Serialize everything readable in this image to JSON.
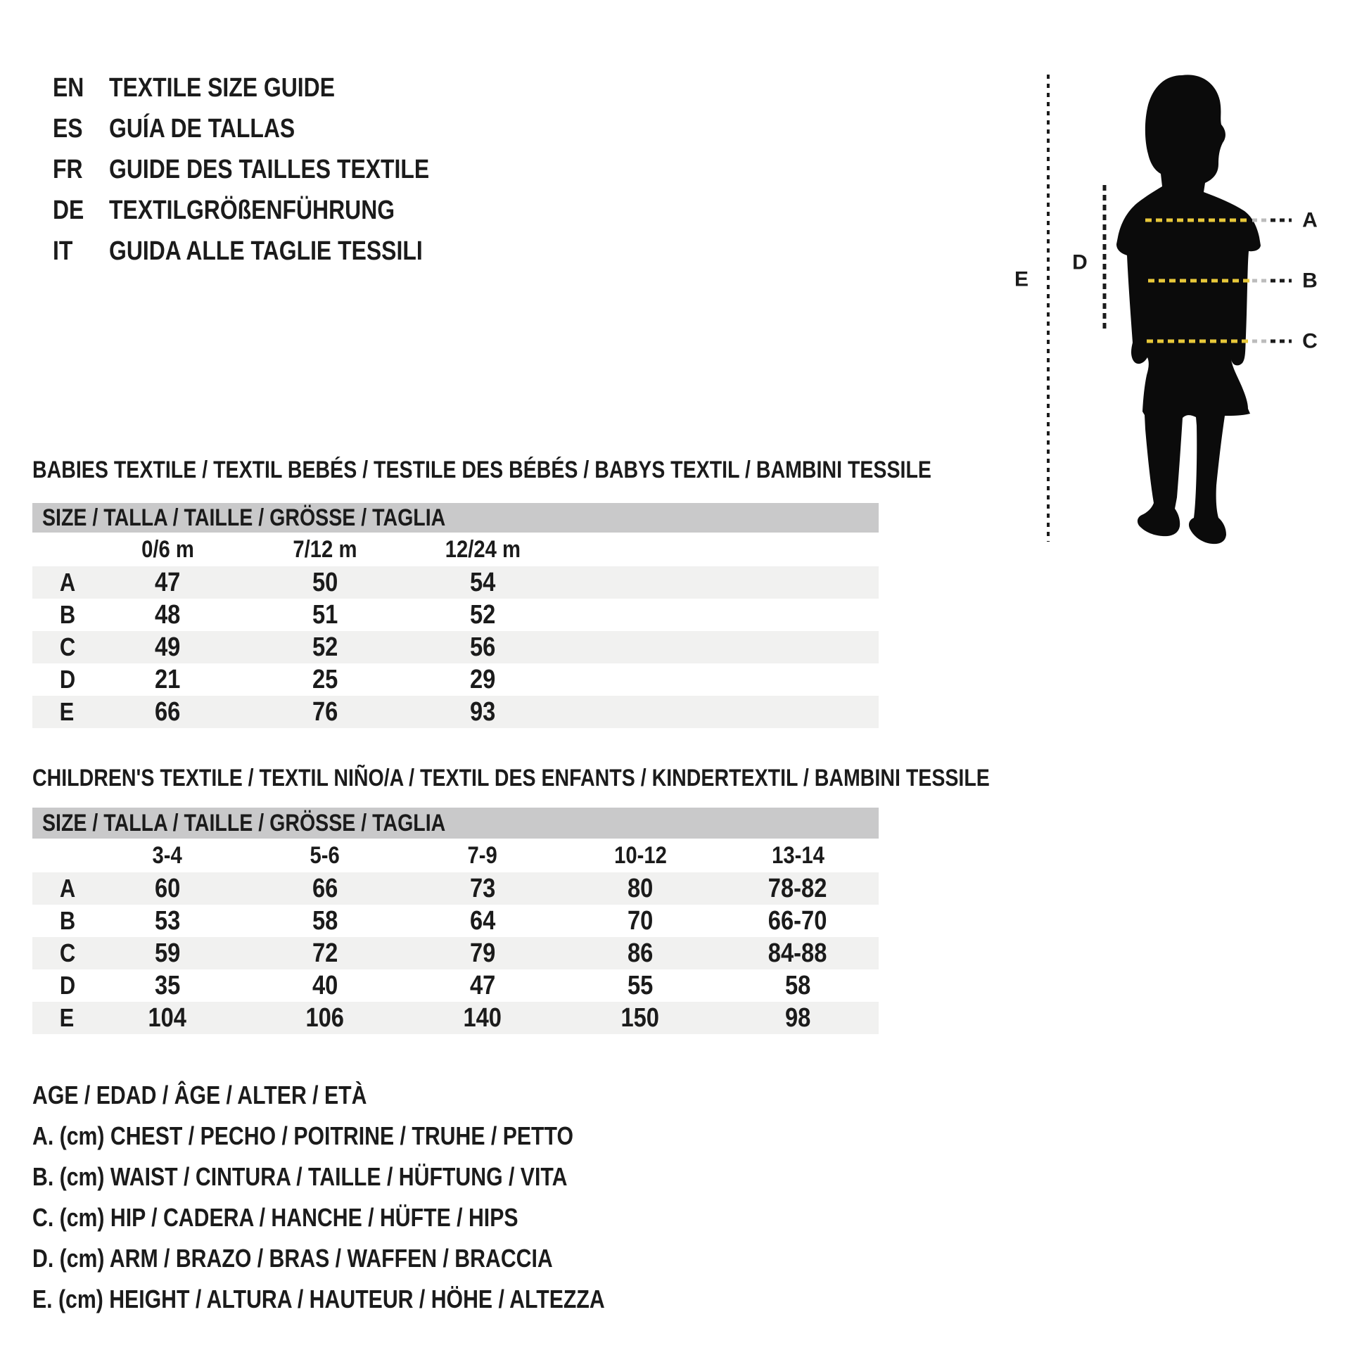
{
  "header": {
    "rows": [
      {
        "lang": "EN",
        "title": "TEXTILE SIZE GUIDE"
      },
      {
        "lang": "ES",
        "title": "GUÍA DE TALLAS"
      },
      {
        "lang": "FR",
        "title": "GUIDE DES TAILLES TEXTILE"
      },
      {
        "lang": "DE",
        "title": "TEXTILGRÖßENFÜHRUNG"
      },
      {
        "lang": "IT",
        "title": "GUIDA ALLE TAGLIE TESSILI"
      }
    ]
  },
  "figure": {
    "markers": {
      "a": "A",
      "b": "B",
      "c": "C",
      "d": "D",
      "e": "E"
    },
    "colors": {
      "silhouette": "#0b0b0b",
      "measure_yellow": "#e8c83a",
      "measure_fade": "#bcbcbc",
      "measure_black": "#1c1c1c"
    }
  },
  "babies": {
    "title": "BABIES TEXTILE / TEXTIL BEBÉS / TESTILE DES BÉBÉS / BABYS TEXTIL / BAMBINI TESSILE",
    "size_header": "SIZE / TALLA / TAILLE / GRÖSSE / TAGLIA",
    "columns": [
      "0/6 m",
      "7/12 m",
      "12/24 m"
    ],
    "rows": [
      {
        "label": "A",
        "values": [
          "47",
          "50",
          "54"
        ]
      },
      {
        "label": "B",
        "values": [
          "48",
          "51",
          "52"
        ]
      },
      {
        "label": "C",
        "values": [
          "49",
          "52",
          "56"
        ]
      },
      {
        "label": "D",
        "values": [
          "21",
          "25",
          "29"
        ]
      },
      {
        "label": "E",
        "values": [
          "66",
          "76",
          "93"
        ]
      }
    ]
  },
  "children": {
    "title": "CHILDREN'S TEXTILE / TEXTIL NIÑO/A / TEXTIL DES ENFANTS / KINDERTEXTIL / BAMBINI TESSILE",
    "size_header": "SIZE / TALLA / TAILLE / GRÖSSE / TAGLIA",
    "columns": [
      "3-4",
      "5-6",
      "7-9",
      "10-12",
      "13-14"
    ],
    "rows": [
      {
        "label": "A",
        "values": [
          "60",
          "66",
          "73",
          "80",
          "78-82"
        ]
      },
      {
        "label": "B",
        "values": [
          "53",
          "58",
          "64",
          "70",
          "66-70"
        ]
      },
      {
        "label": "C",
        "values": [
          "59",
          "72",
          "79",
          "86",
          "84-88"
        ]
      },
      {
        "label": "D",
        "values": [
          "35",
          "40",
          "47",
          "55",
          "58"
        ]
      },
      {
        "label": "E",
        "values": [
          "104",
          "106",
          "140",
          "150",
          "98"
        ]
      }
    ]
  },
  "legend": {
    "lines": [
      "AGE / EDAD / ÂGE / ALTER / ETÀ",
      "A. (cm) CHEST / PECHO / POITRINE / TRUHE / PETTO",
      "B. (cm) WAIST / CINTURA / TAILLE / HÜFTUNG / VITA",
      "C. (cm) HIP / CADERA / HANCHE / HÜFTE / HIPS",
      "D. (cm) ARM / BRAZO / BRAS / WAFFEN / BRACCIA",
      "E. (cm) HEIGHT / ALTURA / HAUTEUR / HÖHE / ALTEZZA"
    ]
  },
  "table_style": {
    "size_bar_bg": "#c9c9ca",
    "stripe_bg": "#f1f1f0"
  }
}
